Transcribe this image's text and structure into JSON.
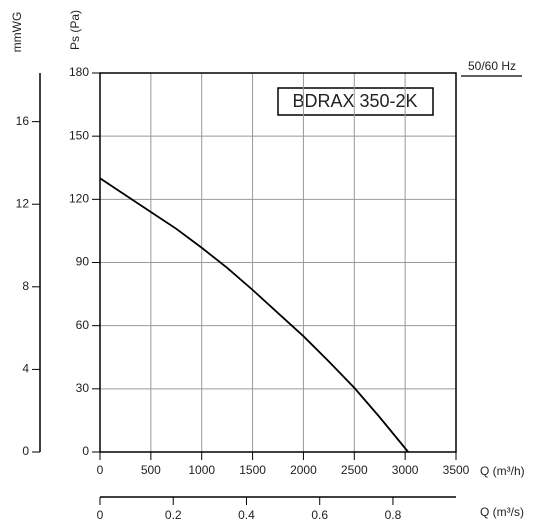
{
  "chart_data": {
    "type": "line",
    "title": "BDRAX 350-2K",
    "annotation": "50/60 Hz",
    "xlabel": "Q (m³/h)",
    "x2label": "Q (m³/s)",
    "ylabel": "Ps (Pa)",
    "y2label": "mmWG",
    "x": [
      0,
      250,
      500,
      750,
      1000,
      1250,
      1500,
      1750,
      2000,
      2250,
      2500,
      2750,
      3030
    ],
    "values": [
      130,
      122,
      114,
      106,
      97,
      87.5,
      77,
      66,
      55,
      43,
      30.5,
      16.5,
      0
    ],
    "color": "#000000",
    "xlim": [
      0,
      3500
    ],
    "xticks": [
      0,
      500,
      1000,
      1500,
      2000,
      2500,
      3000,
      3500
    ],
    "x2lim": [
      0,
      0.9722
    ],
    "x2ticks": [
      0,
      0.2,
      0.4,
      0.6,
      0.8
    ],
    "ylim": [
      0,
      180
    ],
    "yticks": [
      0,
      30,
      60,
      90,
      120,
      150,
      180
    ],
    "y2lim": [
      0,
      18.355
    ],
    "y2ticks": [
      0,
      4,
      8,
      12,
      16
    ],
    "grid": true
  }
}
